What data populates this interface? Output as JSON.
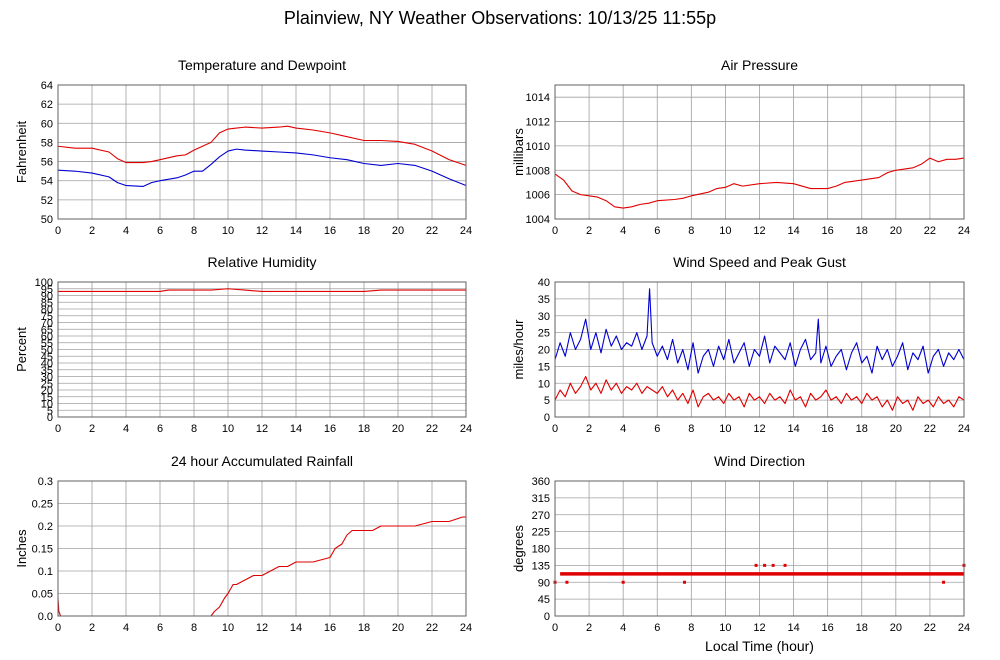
{
  "page_title": "Plainview, NY Weather Observations: 10/13/25 11:55p",
  "shared_xlabel": "Local Time (hour)",
  "colors": {
    "primary_line": "#e00000",
    "secondary_line": "#0000d0",
    "grid": "#a0a0a0",
    "frame": "#606060"
  },
  "chart_data": [
    {
      "id": "temperature",
      "type": "line",
      "title": "Temperature and Dewpoint",
      "ylabel": "Fahrenheit",
      "xlim": [
        0,
        24
      ],
      "ylim": [
        50,
        64
      ],
      "xticks": [
        0,
        2,
        4,
        6,
        8,
        10,
        12,
        14,
        16,
        18,
        20,
        22,
        24
      ],
      "yticks": [
        50,
        52,
        54,
        56,
        58,
        60,
        62,
        64
      ],
      "grid": true,
      "series": [
        {
          "color": "#e00000",
          "x": [
            0,
            1,
            2,
            3,
            3.5,
            4,
            5,
            5.5,
            6,
            7,
            7.5,
            8,
            8.5,
            9,
            9.5,
            10,
            10.5,
            11,
            12,
            13,
            13.5,
            14,
            15,
            16,
            17,
            18,
            19,
            20,
            21,
            22,
            23,
            24
          ],
          "y": [
            57.6,
            57.4,
            57.4,
            57.0,
            56.3,
            55.9,
            55.9,
            56.0,
            56.2,
            56.6,
            56.7,
            57.2,
            57.6,
            58.0,
            59.0,
            59.4,
            59.5,
            59.6,
            59.5,
            59.6,
            59.7,
            59.5,
            59.3,
            59.0,
            58.6,
            58.2,
            58.2,
            58.1,
            57.8,
            57.1,
            56.2,
            55.6
          ]
        },
        {
          "color": "#0000d0",
          "x": [
            0,
            1,
            2,
            3,
            3.5,
            4,
            5,
            5.5,
            6,
            7,
            7.5,
            8,
            8.5,
            9,
            9.5,
            10,
            10.5,
            11,
            12,
            13,
            14,
            15,
            16,
            17,
            18,
            19,
            20,
            21,
            22,
            23,
            24
          ],
          "y": [
            55.1,
            55.0,
            54.8,
            54.4,
            53.8,
            53.5,
            53.4,
            53.8,
            54.0,
            54.3,
            54.6,
            55.0,
            55.0,
            55.7,
            56.5,
            57.1,
            57.3,
            57.2,
            57.1,
            57.0,
            56.9,
            56.7,
            56.4,
            56.2,
            55.8,
            55.6,
            55.8,
            55.6,
            55.0,
            54.2,
            53.5
          ]
        }
      ]
    },
    {
      "id": "pressure",
      "type": "line",
      "title": "Air Pressure",
      "ylabel": "millibars",
      "xlim": [
        0,
        24
      ],
      "ylim": [
        1004,
        1015
      ],
      "xticks": [
        0,
        2,
        4,
        6,
        8,
        10,
        12,
        14,
        16,
        18,
        20,
        22,
        24
      ],
      "yticks": [
        1004,
        1006,
        1008,
        1010,
        1012,
        1014
      ],
      "grid": true,
      "series": [
        {
          "color": "#e00000",
          "x": [
            0,
            0.5,
            1,
            1.5,
            2,
            2.5,
            3,
            3.5,
            4,
            4.5,
            5,
            5.5,
            6,
            7,
            7.5,
            8,
            9,
            9.5,
            10,
            10.5,
            11,
            12,
            13,
            14,
            15,
            16,
            16.5,
            17,
            18,
            19,
            19.5,
            20,
            21,
            21.5,
            22,
            22.5,
            23,
            23.5,
            24
          ],
          "y": [
            1007.7,
            1007.2,
            1006.3,
            1006.0,
            1005.9,
            1005.8,
            1005.5,
            1005.0,
            1004.9,
            1005.0,
            1005.2,
            1005.3,
            1005.5,
            1005.6,
            1005.7,
            1005.9,
            1006.2,
            1006.5,
            1006.6,
            1006.9,
            1006.7,
            1006.9,
            1007.0,
            1006.9,
            1006.5,
            1006.5,
            1006.7,
            1007.0,
            1007.2,
            1007.4,
            1007.8,
            1008.0,
            1008.2,
            1008.5,
            1009.0,
            1008.7,
            1008.9,
            1008.9,
            1009.0
          ]
        }
      ]
    },
    {
      "id": "humidity",
      "type": "line",
      "title": "Relative Humidity",
      "ylabel": "Percent",
      "xlim": [
        0,
        24
      ],
      "ylim": [
        0,
        100
      ],
      "xticks": [
        0,
        2,
        4,
        6,
        8,
        10,
        12,
        14,
        16,
        18,
        20,
        22,
        24
      ],
      "yticks": [
        0,
        5,
        10,
        15,
        20,
        25,
        30,
        35,
        40,
        45,
        50,
        55,
        60,
        65,
        70,
        75,
        80,
        85,
        90,
        95,
        100
      ],
      "grid": true,
      "series": [
        {
          "color": "#e00000",
          "x": [
            0,
            2,
            4,
            6,
            6.5,
            7,
            8,
            9,
            10,
            11,
            12,
            14,
            16,
            18,
            19,
            20,
            22,
            24
          ],
          "y": [
            93,
            93,
            93,
            93,
            94,
            94,
            94,
            94,
            95,
            94,
            93,
            93,
            93,
            93,
            94,
            94,
            94,
            94
          ]
        }
      ]
    },
    {
      "id": "wind_speed",
      "type": "line",
      "title": "Wind Speed and Peak Gust",
      "ylabel": "miles/hour",
      "xlim": [
        0,
        24
      ],
      "ylim": [
        0,
        40
      ],
      "xticks": [
        0,
        2,
        4,
        6,
        8,
        10,
        12,
        14,
        16,
        18,
        20,
        22,
        24
      ],
      "yticks": [
        0,
        5,
        10,
        15,
        20,
        25,
        30,
        35,
        40
      ],
      "grid": true,
      "series": [
        {
          "color": "#0000d0",
          "x": [
            0,
            0.3,
            0.6,
            0.9,
            1.2,
            1.5,
            1.8,
            2.1,
            2.4,
            2.7,
            3.0,
            3.3,
            3.6,
            3.9,
            4.2,
            4.5,
            4.8,
            5.1,
            5.4,
            5.55,
            5.7,
            6.0,
            6.3,
            6.6,
            6.9,
            7.2,
            7.5,
            7.8,
            8.1,
            8.4,
            8.7,
            9.0,
            9.3,
            9.6,
            9.9,
            10.2,
            10.5,
            10.8,
            11.1,
            11.4,
            11.7,
            12.0,
            12.3,
            12.6,
            12.9,
            13.2,
            13.5,
            13.8,
            14.1,
            14.4,
            14.7,
            15.0,
            15.3,
            15.45,
            15.6,
            15.9,
            16.2,
            16.5,
            16.8,
            17.1,
            17.4,
            17.7,
            18.0,
            18.3,
            18.6,
            18.9,
            19.2,
            19.5,
            19.8,
            20.1,
            20.4,
            20.7,
            21.0,
            21.3,
            21.6,
            21.9,
            22.2,
            22.5,
            22.8,
            23.1,
            23.4,
            23.7,
            24.0
          ],
          "y": [
            17,
            22,
            18,
            25,
            20,
            23,
            29,
            20,
            25,
            19,
            26,
            21,
            24,
            20,
            22,
            21,
            25,
            20,
            24,
            38,
            22,
            18,
            21,
            17,
            23,
            16,
            20,
            14,
            22,
            13,
            18,
            20,
            15,
            21,
            17,
            23,
            16,
            19,
            22,
            15,
            20,
            18,
            24,
            16,
            21,
            19,
            17,
            22,
            15,
            20,
            23,
            17,
            19,
            29,
            16,
            21,
            15,
            18,
            20,
            14,
            19,
            22,
            16,
            18,
            13,
            21,
            17,
            20,
            15,
            18,
            22,
            14,
            19,
            17,
            21,
            13,
            18,
            20,
            15,
            19,
            17,
            20,
            17
          ]
        },
        {
          "color": "#e00000",
          "x": [
            0,
            0.3,
            0.6,
            0.9,
            1.2,
            1.5,
            1.8,
            2.1,
            2.4,
            2.7,
            3.0,
            3.3,
            3.6,
            3.9,
            4.2,
            4.5,
            4.8,
            5.1,
            5.4,
            5.7,
            6.0,
            6.3,
            6.6,
            6.9,
            7.2,
            7.5,
            7.8,
            8.1,
            8.4,
            8.7,
            9.0,
            9.3,
            9.6,
            9.9,
            10.2,
            10.5,
            10.8,
            11.1,
            11.4,
            11.7,
            12.0,
            12.3,
            12.6,
            12.9,
            13.2,
            13.5,
            13.8,
            14.1,
            14.4,
            14.7,
            15.0,
            15.3,
            15.6,
            15.9,
            16.2,
            16.5,
            16.8,
            17.1,
            17.4,
            17.7,
            18.0,
            18.3,
            18.6,
            18.9,
            19.2,
            19.5,
            19.8,
            20.1,
            20.4,
            20.7,
            21.0,
            21.3,
            21.6,
            21.9,
            22.2,
            22.5,
            22.8,
            23.1,
            23.4,
            23.7,
            24.0
          ],
          "y": [
            5,
            8,
            6,
            10,
            7,
            9,
            12,
            8,
            10,
            7,
            11,
            8,
            10,
            7,
            9,
            8,
            10,
            7,
            9,
            8,
            7,
            9,
            6,
            8,
            5,
            7,
            4,
            8,
            3,
            6,
            7,
            5,
            6,
            4,
            7,
            5,
            6,
            3,
            7,
            5,
            6,
            4,
            7,
            5,
            6,
            4,
            8,
            5,
            6,
            3,
            7,
            5,
            6,
            8,
            5,
            6,
            4,
            7,
            5,
            6,
            4,
            7,
            5,
            6,
            3,
            5,
            2,
            6,
            4,
            5,
            2,
            6,
            4,
            5,
            3,
            6,
            4,
            5,
            3,
            6,
            5
          ]
        }
      ]
    },
    {
      "id": "rainfall",
      "type": "line",
      "title": "24 hour Accumulated Rainfall",
      "ylabel": "Inches",
      "xlim": [
        0,
        24
      ],
      "ylim": [
        0,
        0.3
      ],
      "xticks": [
        0,
        2,
        4,
        6,
        8,
        10,
        12,
        14,
        16,
        18,
        20,
        22,
        24
      ],
      "yticks": [
        0.0,
        0.05,
        0.1,
        0.15,
        0.2,
        0.25,
        0.3
      ],
      "ytick_labels": [
        "0.0",
        "0.05",
        "0.1",
        "0.15",
        "0.2",
        "0.25",
        "0.3"
      ],
      "grid": true,
      "series": [
        {
          "color": "#e00000",
          "x": [
            0,
            0.05,
            0.15,
            0.2,
            9.0,
            9.2,
            9.5,
            9.8,
            10.0,
            10.3,
            10.5,
            11.0,
            11.5,
            12.0,
            13.0,
            13.5,
            14.0,
            14.5,
            15.0,
            16.0,
            16.3,
            16.7,
            17.0,
            17.3,
            18.5,
            19.0,
            20.0,
            21.0,
            22.0,
            23.0,
            23.8,
            24.0
          ],
          "y": [
            0.04,
            0.01,
            0.0,
            0.0,
            0.0,
            0.01,
            0.02,
            0.04,
            0.05,
            0.07,
            0.07,
            0.08,
            0.09,
            0.09,
            0.11,
            0.11,
            0.12,
            0.12,
            0.12,
            0.13,
            0.15,
            0.16,
            0.18,
            0.19,
            0.19,
            0.2,
            0.2,
            0.2,
            0.21,
            0.21,
            0.22,
            0.22
          ]
        }
      ]
    },
    {
      "id": "wind_direction",
      "type": "scatter",
      "title": "Wind Direction",
      "ylabel": "degrees",
      "xlabel": "Local Time (hour)",
      "xlim": [
        0,
        24
      ],
      "ylim": [
        0,
        360
      ],
      "xticks": [
        0,
        2,
        4,
        6,
        8,
        10,
        12,
        14,
        16,
        18,
        20,
        22,
        24
      ],
      "yticks": [
        0,
        45,
        90,
        135,
        180,
        225,
        270,
        315,
        360
      ],
      "grid": true,
      "series": [
        {
          "color": "#e00000",
          "band": [
            0.3,
            24.0,
            112.5
          ],
          "points_x": [
            0.0,
            0.7,
            4.0,
            7.6,
            11.8,
            12.3,
            12.8,
            13.5,
            22.8,
            24.0
          ],
          "points_y": [
            90,
            90,
            90,
            90,
            135,
            135,
            135,
            135,
            90,
            135
          ]
        }
      ]
    }
  ]
}
